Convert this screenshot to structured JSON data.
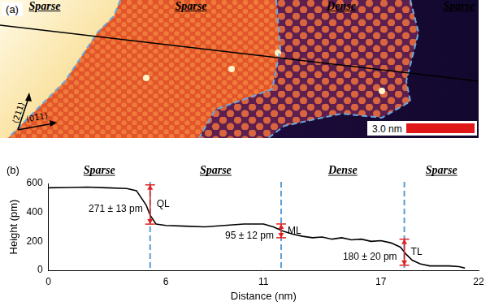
{
  "image_panel": {
    "panel_label": "(a)",
    "regions": [
      "Sparse",
      "Sparse",
      "Dense",
      "Sparse"
    ],
    "directions": [
      "⟨2̄11⟩",
      "⟨01̄1⟩"
    ],
    "scale_bar": "3.0 nm"
  },
  "chart_data": {
    "type": "line",
    "panel_label": "(b)",
    "regions": [
      "Sparse",
      "Sparse",
      "Dense",
      "Sparse"
    ],
    "x_label": "Distance (nm)",
    "y_label": "Height (pm)",
    "x": [
      0,
      1,
      2,
      3,
      4,
      4.5,
      5.0,
      5.2,
      5.5,
      6,
      7,
      8,
      9,
      10,
      11,
      11.5,
      12,
      12.5,
      13,
      13.5,
      14,
      14.5,
      15,
      15.5,
      16,
      16.5,
      17,
      17.5,
      18,
      18.3,
      18.6,
      19,
      19.5,
      20,
      20.5,
      21,
      21.3
    ],
    "values": [
      570,
      572,
      575,
      570,
      565,
      550,
      450,
      380,
      320,
      310,
      305,
      300,
      310,
      320,
      320,
      300,
      270,
      250,
      235,
      225,
      230,
      215,
      225,
      210,
      215,
      200,
      205,
      190,
      160,
      110,
      70,
      45,
      30,
      30,
      30,
      25,
      15
    ],
    "color": "#000000",
    "xlim": [
      0,
      22
    ],
    "ylim": [
      0,
      600
    ],
    "xticks": [
      0,
      6,
      11,
      17,
      22
    ],
    "yticks": [
      0,
      200,
      400,
      600
    ],
    "grid": false,
    "boundaries": [
      5.2,
      11.9,
      18.2
    ],
    "annotations": [
      {
        "x": 5.2,
        "y_from": 590,
        "y_to": 319,
        "label": "271 ± 13 pm",
        "tag": "QL"
      },
      {
        "x": 11.9,
        "y_from": 320,
        "y_to": 225,
        "label": "95 ± 12 pm",
        "tag": "ML"
      },
      {
        "x": 18.2,
        "y_from": 215,
        "y_to": 35,
        "label": "180 ± 20 pm",
        "tag": "TL"
      }
    ]
  }
}
